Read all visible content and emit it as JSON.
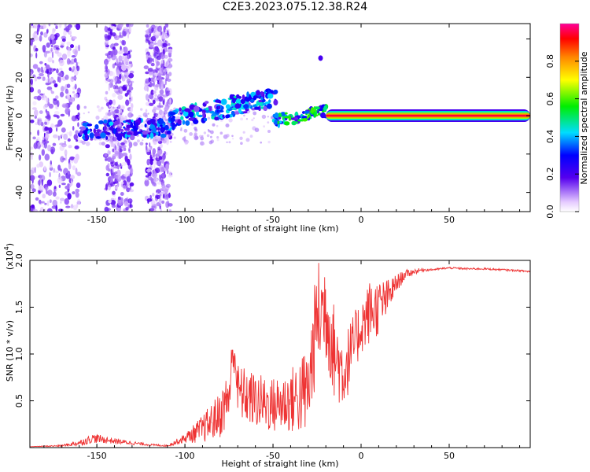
{
  "figure": {
    "title": "C2E3.2023.075.12.38.R24"
  },
  "chart_data": [
    {
      "type": "heatmap",
      "name": "spectrogram",
      "xlabel": "Height of straight line (km)",
      "ylabel": "Frequency (Hz)",
      "xlim": [
        -188,
        96
      ],
      "ylim": [
        -50,
        48
      ],
      "x_ticks": [
        -150,
        -100,
        -50,
        0,
        50
      ],
      "y_ticks": [
        -40,
        -20,
        0,
        20,
        40
      ],
      "colorbar": {
        "label": "Normalized spectral amplitude",
        "range": [
          0,
          1
        ],
        "ticks": [
          0.0,
          0.2,
          0.4,
          0.6,
          0.8
        ]
      },
      "features": {
        "strong_line": {
          "x_start": -20,
          "x_end": 96,
          "frequency_hz": 0,
          "amplitude": 1.0
        },
        "moderate_segment_1": {
          "x_start": -160,
          "x_end": -108,
          "frequency_start_hz": -8,
          "frequency_end_hz": -6,
          "amplitude": 0.35
        },
        "moderate_segment_2": {
          "x_start": -108,
          "x_end": -48,
          "frequency_start_hz": -2,
          "frequency_end_hz": 10,
          "amplitude": 0.4
        },
        "moderate_segment_3": {
          "x_start": -50,
          "x_end": -20,
          "frequency_start_hz": -3,
          "frequency_end_hz": 2,
          "amplitude": 0.5
        },
        "isolated_spot": {
          "x": -23,
          "frequency_hz": 30,
          "amplitude": 0.2
        },
        "noisy_regions_x": [
          [
            -188,
            -160
          ],
          [
            -145,
            -130
          ],
          [
            -122,
            -108
          ]
        ]
      }
    },
    {
      "type": "line",
      "name": "snr",
      "xlabel": "Height of straight line (km)",
      "ylabel": "SNR (10 * v/v)",
      "y_scale_label": "(x10",
      "y_scale_exponent": "4",
      "y_scale_suffix": ")",
      "xlim": [
        -188,
        96
      ],
      "ylim": [
        0,
        2.0
      ],
      "x_ticks": [
        -150,
        -100,
        -50,
        0,
        50
      ],
      "y_ticks": [
        0.5,
        1.0,
        1.5,
        2.0
      ],
      "series": [
        {
          "name": "SNR",
          "color": "#ee3333",
          "x": [
            -188,
            -170,
            -160,
            -152,
            -140,
            -130,
            -120,
            -110,
            -100,
            -90,
            -80,
            -75,
            -72,
            -70,
            -60,
            -50,
            -40,
            -30,
            -25,
            -20,
            -15,
            -10,
            0,
            5,
            10,
            15,
            20,
            25,
            30,
            35,
            40,
            50,
            60,
            70,
            80,
            90,
            96
          ],
          "values": [
            0.01,
            0.02,
            0.05,
            0.1,
            0.07,
            0.05,
            0.03,
            0.02,
            0.1,
            0.2,
            0.35,
            0.55,
            1.1,
            0.6,
            0.5,
            0.45,
            0.5,
            0.6,
            1.4,
            1.5,
            1.0,
            0.8,
            1.3,
            1.45,
            1.5,
            1.6,
            1.75,
            1.85,
            1.88,
            1.9,
            1.9,
            1.92,
            1.91,
            1.91,
            1.9,
            1.89,
            1.88
          ],
          "noise_amplitude": [
            0.0,
            0.01,
            0.03,
            0.05,
            0.03,
            0.02,
            0.01,
            0.01,
            0.05,
            0.15,
            0.25,
            0.3,
            0.3,
            0.3,
            0.3,
            0.3,
            0.35,
            0.5,
            0.6,
            0.6,
            0.5,
            0.4,
            0.3,
            0.35,
            0.3,
            0.2,
            0.1,
            0.05,
            0.03,
            0.02,
            0.01,
            0.01,
            0.01,
            0.01,
            0.01,
            0.01,
            0.01
          ]
        }
      ]
    }
  ]
}
